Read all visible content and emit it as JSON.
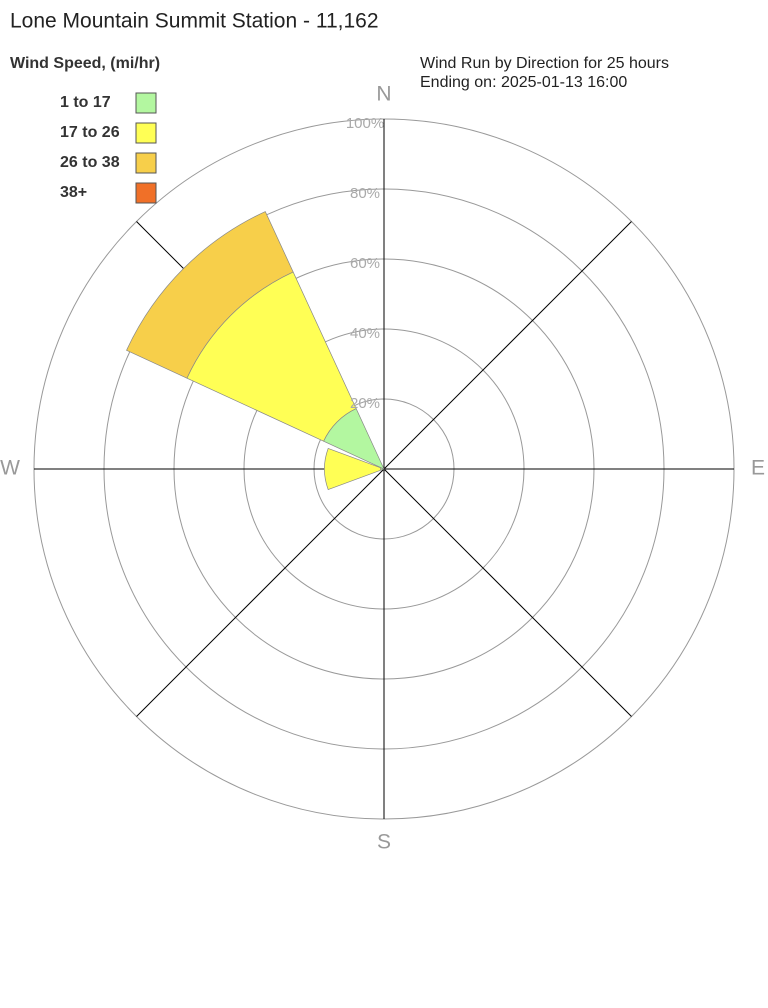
{
  "chart_data": {
    "type": "windrose",
    "title": "Lone Mountain Summit Station - 11,162",
    "legend_title": "Wind Speed, (mi/hr)",
    "subtitle": [
      "Wind Run by Direction for 25 hours",
      "Ending on: 2025-01-13 16:00"
    ],
    "categories": [
      "N",
      null,
      "E",
      null,
      "S",
      null,
      "W",
      null
    ],
    "series": [
      {
        "name": "1 to 17",
        "color": "#b3f7a0",
        "values": [
          0,
          0,
          0,
          0,
          0,
          0,
          1,
          19
        ]
      },
      {
        "name": "17 to 26",
        "color": "#ffff55",
        "values": [
          0,
          0,
          0,
          0,
          0,
          0,
          16,
          43
        ]
      },
      {
        "name": "26 to 38",
        "color": "#f7cf4a",
        "values": [
          0,
          0,
          0,
          0,
          0,
          0,
          0,
          19
        ]
      },
      {
        "name": "38+",
        "color": "#f07028",
        "values": [
          0,
          0,
          0,
          0,
          0,
          0,
          0,
          0
        ]
      }
    ],
    "rlim": [
      0,
      100
    ],
    "rticks": [
      {
        "value": 20,
        "label": "20%"
      },
      {
        "value": 40,
        "label": "40%"
      },
      {
        "value": 60,
        "label": "60%"
      },
      {
        "value": 80,
        "label": "80%"
      },
      {
        "value": 100,
        "label": "100%"
      }
    ],
    "legend_position": "top-left"
  }
}
